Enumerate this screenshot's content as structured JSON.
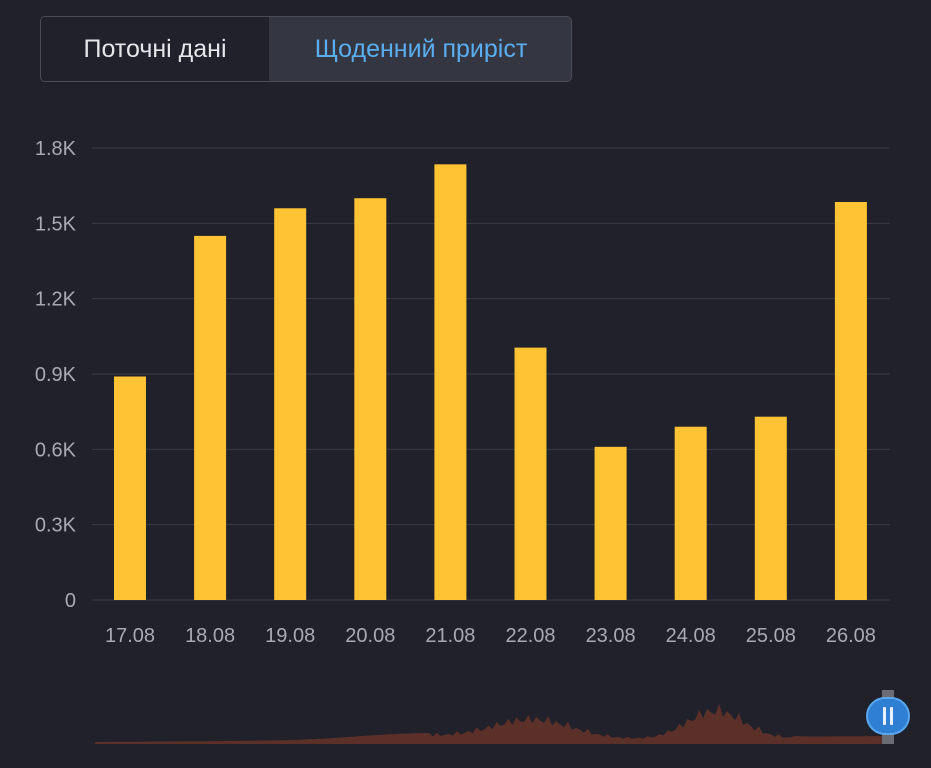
{
  "tabs": [
    {
      "label": "Поточні дані",
      "active": false
    },
    {
      "label": "Щоденний приріст",
      "active": true
    }
  ],
  "colors": {
    "background": "#20212b",
    "bar": "#ffc333",
    "active_tab_text": "#5aaef0",
    "navigator_fill": "#5b3028",
    "navigator_handle": "#2f7fd4"
  },
  "chart_data": {
    "type": "bar",
    "categories": [
      "17.08",
      "18.08",
      "19.08",
      "20.08",
      "21.08",
      "22.08",
      "23.08",
      "24.08",
      "25.08",
      "26.08"
    ],
    "values": [
      890,
      1450,
      1560,
      1600,
      1735,
      1005,
      610,
      690,
      730,
      1585
    ],
    "ylim": [
      0,
      1800
    ],
    "yticks": [
      0,
      300,
      600,
      900,
      1200,
      1500,
      1800
    ],
    "ytick_labels": [
      "0",
      "0.3K",
      "0.6K",
      "0.9K",
      "1.2K",
      "1.5K",
      "1.8K"
    ],
    "grid": true,
    "title": "",
    "xlabel": "",
    "ylabel": ""
  },
  "navigator": {
    "type": "area",
    "description_icon": "range-slider-handle-icon"
  }
}
